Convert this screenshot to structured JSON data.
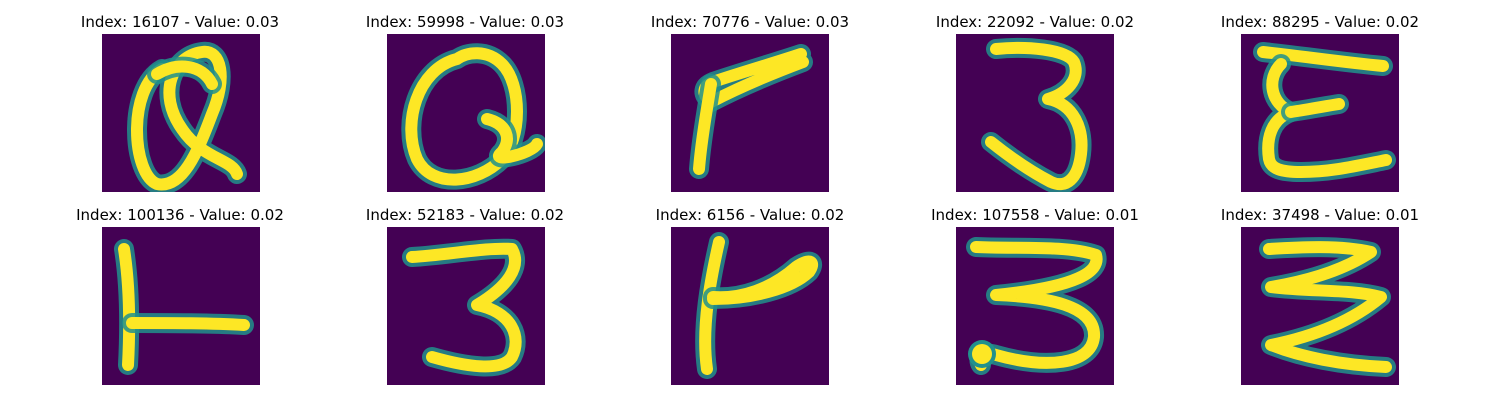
{
  "colors": {
    "background": "#440154",
    "stroke_core": "#fde725",
    "stroke_edge": "#21918c"
  },
  "panels": [
    {
      "title": "Index: 16107 - Value: 0.03"
    },
    {
      "title": "Index: 59998 - Value: 0.03"
    },
    {
      "title": "Index: 70776 - Value: 0.03"
    },
    {
      "title": "Index: 22092 - Value: 0.02"
    },
    {
      "title": "Index: 88295 - Value: 0.02"
    },
    {
      "title": "Index: 100136 - Value: 0.02"
    },
    {
      "title": "Index: 52183 - Value: 0.02"
    },
    {
      "title": "Index: 6156 - Value: 0.02"
    },
    {
      "title": "Index: 107558 - Value: 0.01"
    },
    {
      "title": "Index: 37498 - Value: 0.01"
    }
  ]
}
